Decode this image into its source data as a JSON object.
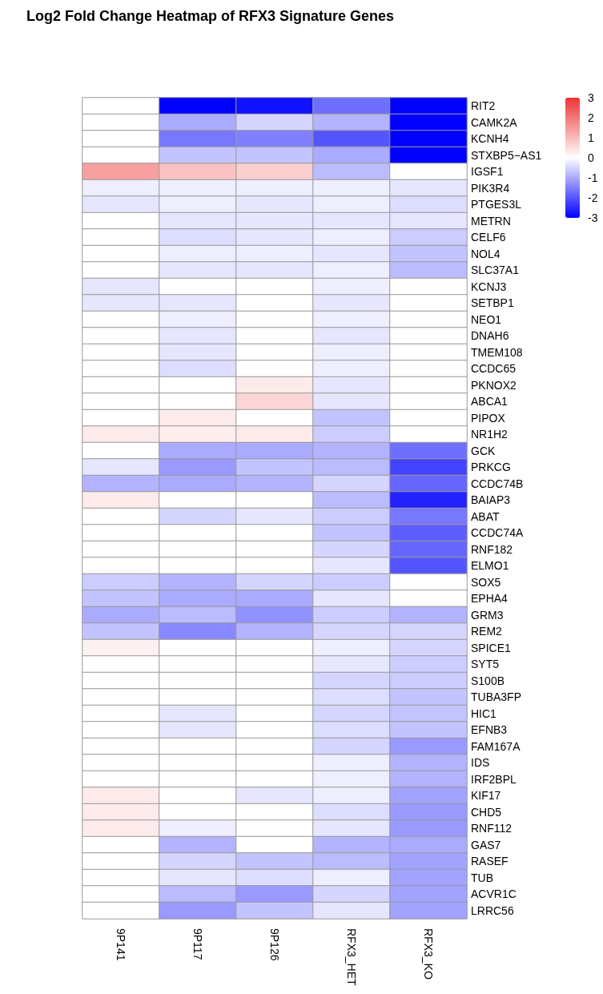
{
  "chart_data": {
    "type": "heatmap",
    "title": "Log2 Fold Change Heatmap of RFX3 Signature Genes",
    "categories": [
      "9P141",
      "9P117",
      "9P126",
      "RFX3_HET",
      "RFX3_KO"
    ],
    "y_categories": [
      "RIT2",
      "CAMK2A",
      "KCNH4",
      "STXBP5−AS1",
      "IGSF1",
      "PIK3R4",
      "PTGES3L",
      "METRN",
      "CELF6",
      "NOL4",
      "SLC37A1",
      "KCNJ3",
      "SETBP1",
      "NEO1",
      "DNAH6",
      "TMEM108",
      "CCDC65",
      "PKNOX2",
      "ABCA1",
      "PIPOX",
      "NR1H2",
      "GCK",
      "PRKCG",
      "CCDC74B",
      "BAIAP3",
      "ABAT",
      "CCDC74A",
      "RNF182",
      "ELMO1",
      "SOX5",
      "EPHA4",
      "GRM3",
      "REM2",
      "SPICE1",
      "SYT5",
      "S100B",
      "TUBA3FP",
      "HIC1",
      "EFNB3",
      "FAM167A",
      "IDS",
      "IRF2BPL",
      "KIF17",
      "CHD5",
      "RNF112",
      "GAS7",
      "RASEF",
      "TUB",
      "ACVR1C",
      "LRRC56"
    ],
    "cells": [
      [
        0,
        -3,
        -2.8,
        -1.7,
        -3
      ],
      [
        0,
        -1.0,
        -0.5,
        -0.9,
        -3
      ],
      [
        0,
        -1.6,
        -1.5,
        -2.0,
        -3
      ],
      [
        0,
        -0.7,
        -0.7,
        -1.0,
        -3
      ],
      [
        1.4,
        0.9,
        0.7,
        -0.8,
        0
      ],
      [
        -0.2,
        -0.2,
        -0.2,
        -0.2,
        -0.3
      ],
      [
        -0.3,
        -0.2,
        -0.3,
        -0.2,
        -0.4
      ],
      [
        0,
        -0.3,
        -0.3,
        -0.3,
        -0.3
      ],
      [
        0,
        -0.4,
        -0.3,
        -0.2,
        -0.6
      ],
      [
        0,
        -0.2,
        -0.2,
        -0.3,
        -0.7
      ],
      [
        0,
        -0.3,
        -0.3,
        -0.2,
        -0.8
      ],
      [
        -0.3,
        0,
        0,
        -0.2,
        0
      ],
      [
        -0.3,
        -0.3,
        0,
        -0.3,
        0
      ],
      [
        0,
        -0.2,
        0,
        -0.2,
        0
      ],
      [
        0,
        -0.3,
        0,
        -0.3,
        0
      ],
      [
        0,
        -0.3,
        0,
        -0.2,
        0
      ],
      [
        0,
        -0.4,
        0,
        -0.2,
        0
      ],
      [
        0,
        0,
        0.3,
        -0.3,
        0
      ],
      [
        0,
        0,
        0.6,
        -0.3,
        0
      ],
      [
        0,
        0.3,
        0,
        -0.7,
        0
      ],
      [
        0.3,
        0.25,
        0.3,
        -0.6,
        0
      ],
      [
        0,
        -1.0,
        -1.0,
        -0.9,
        -1.7
      ],
      [
        -0.3,
        -1.2,
        -0.7,
        -0.8,
        -2.2
      ],
      [
        -0.9,
        -1.0,
        -0.9,
        -0.5,
        -1.8
      ],
      [
        0.3,
        0,
        0,
        -0.8,
        -2.6
      ],
      [
        0,
        -0.5,
        -0.3,
        -0.6,
        -1.6
      ],
      [
        0,
        0,
        0,
        -0.7,
        -1.9
      ],
      [
        0,
        0,
        0,
        -0.5,
        -1.8
      ],
      [
        0,
        0,
        0,
        -0.3,
        -2.0
      ],
      [
        -0.6,
        -0.9,
        -0.5,
        -0.6,
        0
      ],
      [
        -0.7,
        -1.0,
        -1.0,
        -0.3,
        0
      ],
      [
        -1.0,
        -0.8,
        -1.3,
        -0.6,
        -0.9
      ],
      [
        -0.7,
        -1.4,
        -0.9,
        -0.5,
        -0.5
      ],
      [
        0.2,
        0,
        0,
        -0.2,
        -0.5
      ],
      [
        0,
        0,
        0,
        -0.3,
        -0.6
      ],
      [
        0,
        0,
        0,
        -0.5,
        -0.6
      ],
      [
        0,
        0,
        0,
        -0.4,
        -0.7
      ],
      [
        0,
        -0.3,
        0,
        -0.5,
        -0.7
      ],
      [
        0,
        -0.3,
        0,
        -0.4,
        -0.7
      ],
      [
        0,
        0,
        0,
        -0.5,
        -1.2
      ],
      [
        0,
        0,
        0,
        -0.2,
        -0.9
      ],
      [
        0,
        0,
        0,
        -0.2,
        -0.9
      ],
      [
        0.3,
        0,
        -0.3,
        -0.2,
        -1.1
      ],
      [
        0.3,
        0,
        0,
        -0.4,
        -1.2
      ],
      [
        0.3,
        -0.2,
        0,
        -0.3,
        -1.2
      ],
      [
        0,
        -0.9,
        0,
        -0.9,
        -1.0
      ],
      [
        0,
        -0.5,
        -0.7,
        -0.8,
        -1.1
      ],
      [
        0,
        -0.3,
        -0.4,
        -0.2,
        -1.1
      ],
      [
        0,
        -0.8,
        -1.2,
        -0.5,
        -1.1
      ],
      [
        0,
        -1.2,
        -0.7,
        -0.3,
        -1.1
      ]
    ],
    "clim": [
      -3,
      3
    ],
    "cticks": [
      -3,
      -2,
      -1,
      0,
      1,
      2,
      3
    ]
  }
}
